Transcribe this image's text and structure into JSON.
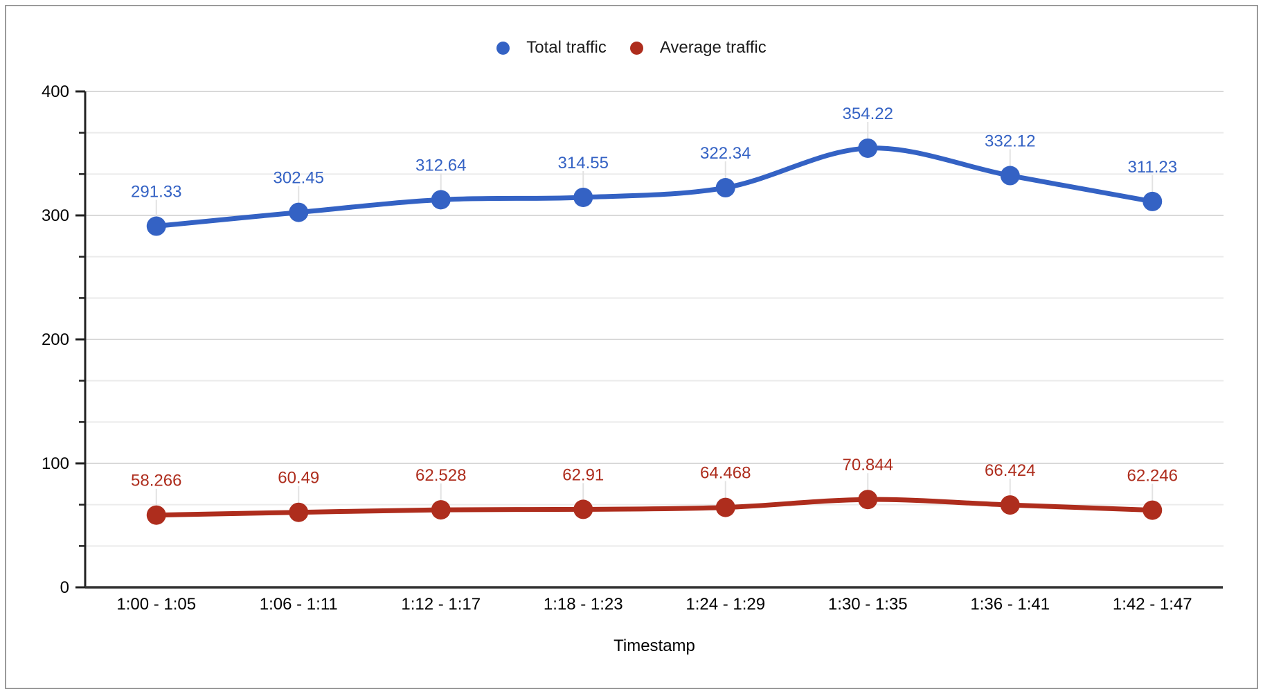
{
  "chart_data": {
    "type": "line",
    "title": "",
    "xlabel": "Timestamp",
    "ylabel": "",
    "categories": [
      "1:00 - 1:05",
      "1:06 - 1:11",
      "1:12 - 1:17",
      "1:18 - 1:23",
      "1:24 - 1:29",
      "1:30 - 1:35",
      "1:36 - 1:41",
      "1:42 - 1:47"
    ],
    "series": [
      {
        "name": "Total traffic",
        "color": "#3462c4",
        "values": [
          291.33,
          302.45,
          312.64,
          314.55,
          322.34,
          354.22,
          332.12,
          311.23
        ]
      },
      {
        "name": "Average traffic",
        "color": "#ae2d1d",
        "values": [
          58.266,
          60.49,
          62.528,
          62.91,
          64.468,
          70.844,
          66.424,
          62.246
        ]
      }
    ],
    "ylim": [
      0,
      400
    ],
    "y_major_ticks": [
      0,
      100,
      200,
      300,
      400
    ],
    "y_minor_divisions_per_major": 3,
    "grid": true,
    "smooth_lines": true,
    "point_labels_shown": true,
    "legend_position": "top",
    "colors": {
      "major_gridline": "#d9d9d9",
      "minor_gridline": "#ebebeb",
      "y_axis_line": "#212121",
      "x_axis_line": "#333333",
      "tick": "#212121",
      "axis_text": "#000000",
      "label_connector": "#e2e2e2",
      "frame_border": "#9a9a9a",
      "background": "#ffffff"
    }
  }
}
